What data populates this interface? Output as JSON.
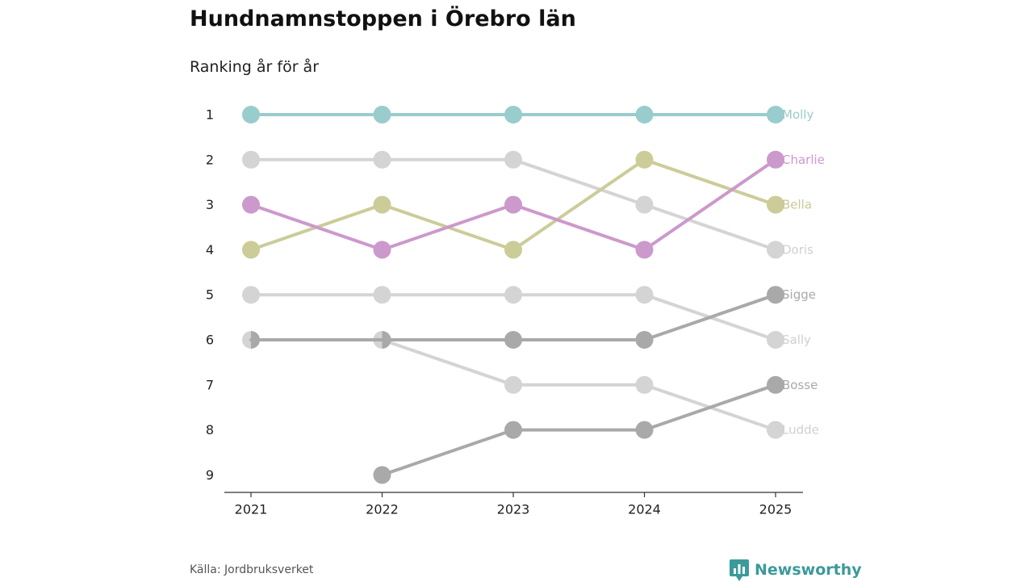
{
  "chart_data": {
    "type": "line",
    "subtype": "bump",
    "title": "Hundnamnstoppen i Örebro län",
    "subtitle": "Ranking år för år",
    "x": [
      "2021",
      "2022",
      "2023",
      "2024",
      "2025"
    ],
    "y_ticks": [
      "1",
      "2",
      "3",
      "4",
      "5",
      "6",
      "7",
      "8",
      "9"
    ],
    "ylim": [
      1,
      9
    ],
    "y_inverted": true,
    "xlabel": "",
    "ylabel": "",
    "grid": false,
    "series": [
      {
        "name": "Molly",
        "values": [
          1,
          1,
          1,
          1,
          1
        ],
        "color": "#99cccc",
        "label_color": "#99cccc"
      },
      {
        "name": "Doris",
        "values": [
          2,
          2,
          2,
          3,
          4
        ],
        "color": "#d4d4d4",
        "label_color": "#d0d0d0"
      },
      {
        "name": "Sally",
        "values": [
          5,
          5,
          5,
          5,
          6
        ],
        "color": "#d4d4d4",
        "label_color": "#d0d0d0"
      },
      {
        "name": "Ludde",
        "values": [
          6,
          6,
          7,
          7,
          8
        ],
        "color": "#d4d4d4",
        "label_color": "#d0d0d0"
      },
      {
        "name": "Sigge",
        "values": [
          6,
          6,
          6,
          6,
          5
        ],
        "color": "#a9a9a9",
        "label_color": "#a9a9a9"
      },
      {
        "name": "Bosse",
        "values": [
          null,
          9,
          8,
          8,
          7
        ],
        "color": "#a9a9a9",
        "label_color": "#a9a9a9"
      },
      {
        "name": "Bella",
        "values": [
          4,
          3,
          4,
          2,
          3
        ],
        "color": "#cccc99",
        "label_color": "#c9c99a"
      },
      {
        "name": "Charlie",
        "values": [
          3,
          4,
          3,
          4,
          2
        ],
        "color": "#cc99cc",
        "label_color": "#cc99cc"
      }
    ]
  },
  "footer": {
    "source": "Källa: Jordbruksverket",
    "brand": "Newsworthy",
    "brand_icon": "newsworthy-logo-icon",
    "brand_color": "#3c9a9a"
  }
}
